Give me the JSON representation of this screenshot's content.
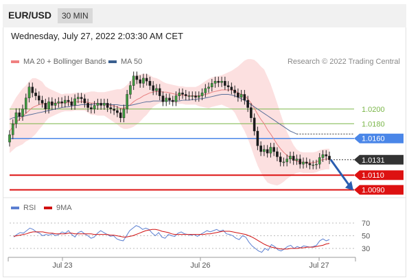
{
  "header": {
    "symbol": "EUR/USD",
    "timeframe": "30 MIN"
  },
  "datetime": "Wednesday, July 27, 2022 2:03:30 AM CET",
  "legend": {
    "ma20_label": "MA 20 + Bollinger Bands",
    "ma20_color": "#f08080",
    "ma50_label": "MA 50",
    "ma50_color": "#3a5f8f"
  },
  "credit": "Research © 2022 Trading Central",
  "rsi_legend": {
    "rsi_label": "RSI",
    "rsi_color": "#5b7fd1",
    "ma_label": "9MA",
    "ma_color": "#d01010"
  },
  "chart_data": {
    "type": "candlestick",
    "ylim": [
      1.0085,
      1.0255
    ],
    "x_ticks": [
      "Jul 23",
      "Jul 26",
      "Jul 27"
    ],
    "levels": [
      {
        "value": 1.02,
        "label": "1.0200",
        "kind": "target",
        "color": "#7ab648"
      },
      {
        "value": 1.018,
        "label": "1.0180",
        "kind": "target",
        "color": "#7ab648"
      },
      {
        "value": 1.016,
        "label": "1.0160",
        "kind": "pivot",
        "color": "#4a86e8"
      },
      {
        "value": 1.0131,
        "label": "1.0131",
        "kind": "last",
        "color": "#333333"
      },
      {
        "value": 1.011,
        "label": "1.0110",
        "kind": "support",
        "color": "#dd1111"
      },
      {
        "value": 1.009,
        "label": "1.0090",
        "kind": "support",
        "color": "#dd1111"
      }
    ],
    "close": [
      1.0165,
      1.018,
      1.0195,
      1.019,
      1.02,
      1.0215,
      1.023,
      1.0222,
      1.0218,
      1.0212,
      1.0208,
      1.02,
      1.021,
      1.0205,
      1.0208,
      1.021,
      1.0208,
      1.0212,
      1.021,
      1.0205,
      1.0214,
      1.0216,
      1.0214,
      1.0208,
      1.0202,
      1.02,
      1.0205,
      1.0208,
      1.0205,
      1.0208,
      1.0202,
      1.02,
      1.0198,
      1.0195,
      1.0188,
      1.02,
      1.022,
      1.0232,
      1.0245,
      1.024,
      1.0235,
      1.0242,
      1.0238,
      1.0232,
      1.0225,
      1.0228,
      1.0218,
      1.021,
      1.0215,
      1.0212,
      1.021,
      1.0218,
      1.0222,
      1.022,
      1.0218,
      1.0218,
      1.0218,
      1.0216,
      1.0218,
      1.0222,
      1.0228,
      1.023,
      1.0235,
      1.0238,
      1.0236,
      1.0238,
      1.0232,
      1.023,
      1.0226,
      1.0222,
      1.0216,
      1.022,
      1.0212,
      1.0202,
      1.0188,
      1.017,
      1.015,
      1.0142,
      1.0145,
      1.014,
      1.0148,
      1.0142,
      1.0135,
      1.0128,
      1.0128,
      1.0132,
      1.0136,
      1.013,
      1.0132,
      1.0125,
      1.0128,
      1.0126,
      1.0124,
      1.0124,
      1.0125,
      1.0134,
      1.0138,
      1.0136,
      1.0131
    ],
    "ma20": [
      1.017,
      1.0176,
      1.0182,
      1.0186,
      1.019,
      1.0194,
      1.0198,
      1.0202,
      1.0204,
      1.0206,
      1.0207,
      1.0207,
      1.0208,
      1.0208,
      1.0208,
      1.0208,
      1.0208,
      1.0209,
      1.0209,
      1.0209,
      1.021,
      1.021,
      1.021,
      1.021,
      1.0209,
      1.0208,
      1.0208,
      1.0207,
      1.0207,
      1.0207,
      1.0206,
      1.0205,
      1.0204,
      1.0203,
      1.0201,
      1.0201,
      1.0203,
      1.0206,
      1.021,
      1.0213,
      1.0215,
      1.0218,
      1.022,
      1.0222,
      1.0223,
      1.0224,
      1.0224,
      1.0223,
      1.0223,
      1.0222,
      1.0221,
      1.022,
      1.0219,
      1.0219,
      1.0218,
      1.0218,
      1.0218,
      1.0218,
      1.0218,
      1.0219,
      1.022,
      1.0221,
      1.0223,
      1.0224,
      1.0225,
      1.0226,
      1.0226,
      1.0226,
      1.0226,
      1.0225,
      1.0222,
      1.022,
      1.0218,
      1.0214,
      1.0208,
      1.0201,
      1.0193,
      1.0186,
      1.018,
      1.0172,
      1.0166,
      1.0159,
      1.0152,
      1.0146,
      1.0141,
      1.0137,
      1.0134,
      1.0131,
      1.0129,
      1.0128,
      1.0127,
      1.0127,
      1.0127,
      1.0127,
      1.0128,
      1.013,
      1.0131,
      1.0132,
      1.0132
    ],
    "ma50": [
      1.0186,
      1.0188,
      1.0189,
      1.019,
      1.019,
      1.0191,
      1.0192,
      1.0193,
      1.0194,
      1.0195,
      1.0196,
      1.0197,
      1.0198,
      1.0199,
      1.02,
      1.0201,
      1.0202,
      1.0203,
      1.0203,
      1.0204,
      1.0205,
      1.0205,
      1.0206,
      1.0206,
      1.0206,
      1.0206,
      1.0207,
      1.0207,
      1.0207,
      1.0207,
      1.0207,
      1.0206,
      1.0206,
      1.0206,
      1.0205,
      1.0205,
      1.0205,
      1.0205,
      1.0206,
      1.0207,
      1.0208,
      1.0209,
      1.021,
      1.021,
      1.0211,
      1.0211,
      1.0211,
      1.0211,
      1.0211,
      1.0211,
      1.0211,
      1.0211,
      1.0211,
      1.0212,
      1.0212,
      1.0212,
      1.0213,
      1.0213,
      1.0214,
      1.0214,
      1.0215,
      1.0216,
      1.0217,
      1.0218,
      1.0219,
      1.022,
      1.022,
      1.022,
      1.0219,
      1.0218,
      1.0216,
      1.0214,
      1.0212,
      1.0209,
      1.0206,
      1.0203,
      1.02,
      1.0197,
      1.0194,
      1.0191,
      1.0188,
      1.0185,
      1.0182,
      1.0179,
      1.0176,
      1.0173,
      1.017,
      1.0168,
      1.0166
    ],
    "band_width": [
      0.003,
      0.0032,
      0.0034,
      0.0036,
      0.0038,
      0.0038,
      0.004,
      0.004,
      0.0038,
      0.0034,
      0.003,
      0.0024,
      0.002,
      0.0018,
      0.0016,
      0.0014,
      0.0012,
      0.0012,
      0.0012,
      0.0012,
      0.0012,
      0.0012,
      0.0012,
      0.0012,
      0.0014,
      0.0016,
      0.0016,
      0.0016,
      0.0016,
      0.0016,
      0.0018,
      0.002,
      0.0022,
      0.0024,
      0.0026,
      0.0028,
      0.003,
      0.0032,
      0.0034,
      0.0034,
      0.0032,
      0.003,
      0.0028,
      0.0024,
      0.002,
      0.0018,
      0.0016,
      0.0014,
      0.0012,
      0.0012,
      0.0012,
      0.0012,
      0.0012,
      0.0012,
      0.0012,
      0.0012,
      0.0012,
      0.0012,
      0.0014,
      0.0016,
      0.0018,
      0.002,
      0.002,
      0.002,
      0.002,
      0.002,
      0.0022,
      0.0024,
      0.0026,
      0.003,
      0.0036,
      0.0042,
      0.0048,
      0.0054,
      0.006,
      0.0066,
      0.007,
      0.0072,
      0.0074,
      0.0072,
      0.0068,
      0.0062,
      0.0056,
      0.0048,
      0.004,
      0.0032,
      0.0026,
      0.002,
      0.0016,
      0.0014,
      0.0014,
      0.0014,
      0.0014,
      0.0014,
      0.0014,
      0.0014,
      0.0014,
      0.0014,
      0.0014
    ],
    "rsi": {
      "ylim": [
        20,
        80
      ],
      "ticks": [
        70,
        50,
        30
      ],
      "rsi": [
        48,
        52,
        55,
        54,
        58,
        62,
        60,
        56,
        54,
        50,
        52,
        51,
        53,
        50,
        52,
        56,
        54,
        58,
        52,
        48,
        55,
        57,
        53,
        50,
        46,
        48,
        54,
        58,
        55,
        52,
        49,
        50,
        45,
        43,
        42,
        50,
        58,
        62,
        66,
        64,
        60,
        62,
        60,
        54,
        50,
        55,
        48,
        46,
        52,
        50,
        49,
        54,
        56,
        53,
        52,
        51,
        52,
        49,
        52,
        55,
        58,
        56,
        58,
        60,
        57,
        59,
        53,
        52,
        50,
        46,
        44,
        50,
        48,
        40,
        34,
        30,
        26,
        24,
        30,
        27,
        36,
        33,
        28,
        26,
        29,
        33,
        35,
        30,
        33,
        31,
        34,
        33,
        32,
        33,
        35,
        42,
        45,
        42,
        44
      ],
      "ma9": [
        49,
        50,
        51,
        52,
        53,
        55,
        56,
        56,
        56,
        56,
        55,
        54,
        54,
        53,
        53,
        53,
        53,
        54,
        54,
        53,
        53,
        53,
        53,
        53,
        53,
        52,
        52,
        52,
        52,
        52,
        51,
        51,
        50,
        49,
        48,
        48,
        49,
        50,
        52,
        54,
        56,
        58,
        59,
        60,
        60,
        59,
        57,
        56,
        55,
        53,
        52,
        52,
        52,
        52,
        52,
        52,
        52,
        52,
        52,
        52,
        53,
        53,
        54,
        55,
        56,
        57,
        57,
        57,
        56,
        55,
        54,
        53,
        52,
        50,
        48,
        45,
        42,
        39,
        36,
        34,
        32,
        31,
        30,
        29,
        29,
        29,
        30,
        30,
        30,
        31,
        31,
        32,
        32,
        32,
        33,
        34,
        35,
        37,
        38
      ]
    }
  }
}
